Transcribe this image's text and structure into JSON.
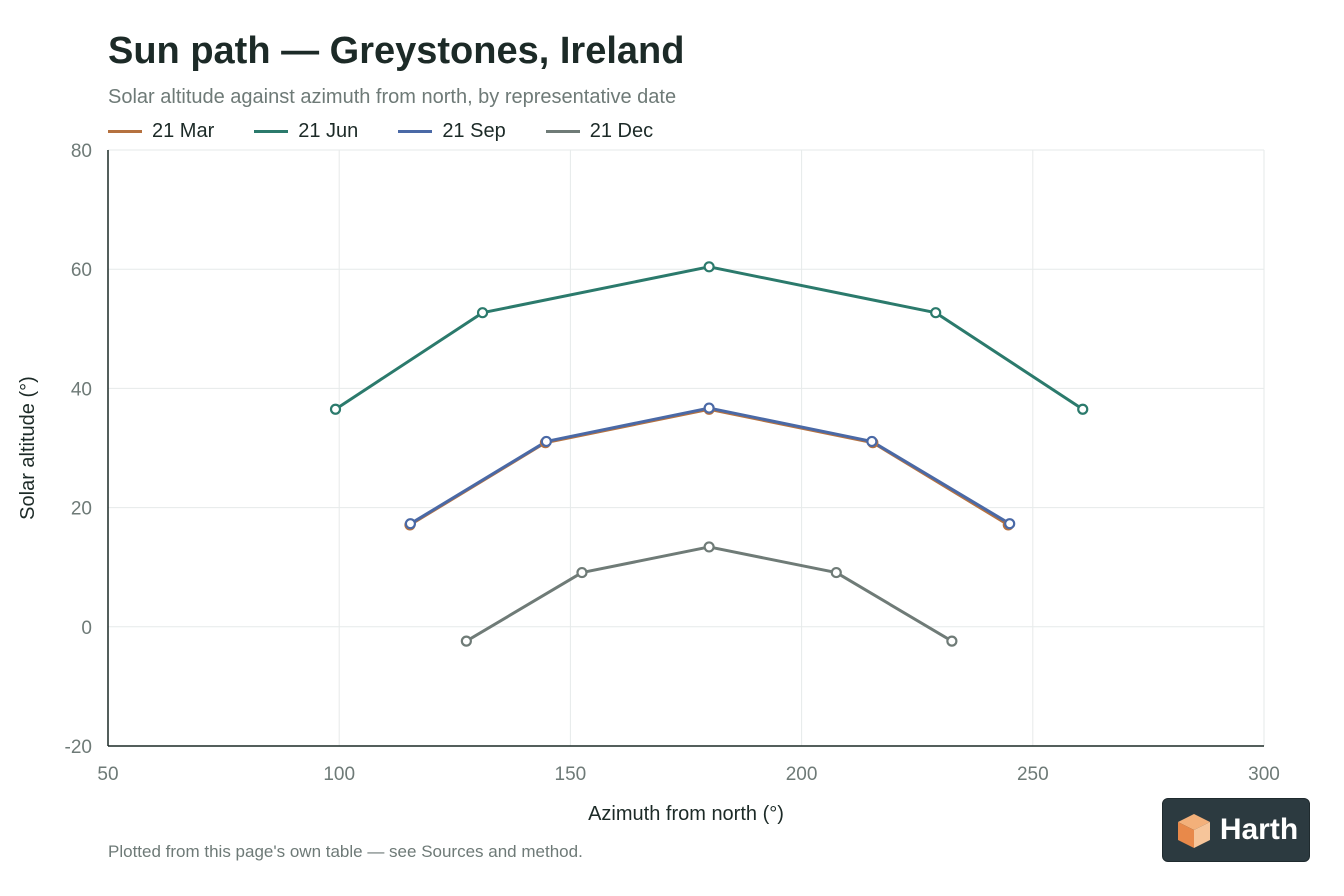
{
  "header": {
    "title": "Sun path — Greystones, Ireland",
    "subtitle": "Solar altitude against azimuth from north, by representative date"
  },
  "footer": {
    "note": "Plotted from this page's own table — see Sources and method.",
    "brand": "Harth"
  },
  "colors": {
    "mar": "#b5713f",
    "jun": "#2b7a6c",
    "sep": "#4a69a6",
    "dec": "#6f7b77",
    "grid": "#e6eaea",
    "axis": "#1c2a27",
    "tick": "#6e7a77"
  },
  "chart_data": {
    "type": "line",
    "title": "Sun path — Greystones, Ireland",
    "subtitle": "Solar altitude against azimuth from north, by representative date",
    "xlabel": "Azimuth from north (°)",
    "ylabel": "Solar altitude (°)",
    "xlim": [
      50,
      300
    ],
    "ylim": [
      -20,
      80
    ],
    "xticks": [
      50,
      100,
      150,
      200,
      250,
      300
    ],
    "yticks": [
      -20,
      0,
      20,
      40,
      60,
      80
    ],
    "grid": true,
    "legend_position": "top-left",
    "series": [
      {
        "name": "21 Mar",
        "color": "#b5713f",
        "x": [
          115.3,
          144.6,
          180,
          215.4,
          244.7
        ],
        "y": [
          17.1,
          30.9,
          36.5,
          30.9,
          17.1
        ]
      },
      {
        "name": "21 Jun",
        "color": "#2b7a6c",
        "x": [
          99.2,
          131,
          180,
          229,
          260.8
        ],
        "y": [
          36.5,
          52.7,
          60.4,
          52.7,
          36.5
        ]
      },
      {
        "name": "21 Sep",
        "color": "#4a69a6",
        "x": [
          115.4,
          144.8,
          180,
          215.2,
          245
        ],
        "y": [
          17.3,
          31.1,
          36.7,
          31.1,
          17.3
        ]
      },
      {
        "name": "21 Dec",
        "color": "#6f7b77",
        "x": [
          127.5,
          152.5,
          180,
          207.5,
          232.5
        ],
        "y": [
          -2.4,
          9.1,
          13.4,
          9.1,
          -2.4
        ]
      }
    ]
  }
}
